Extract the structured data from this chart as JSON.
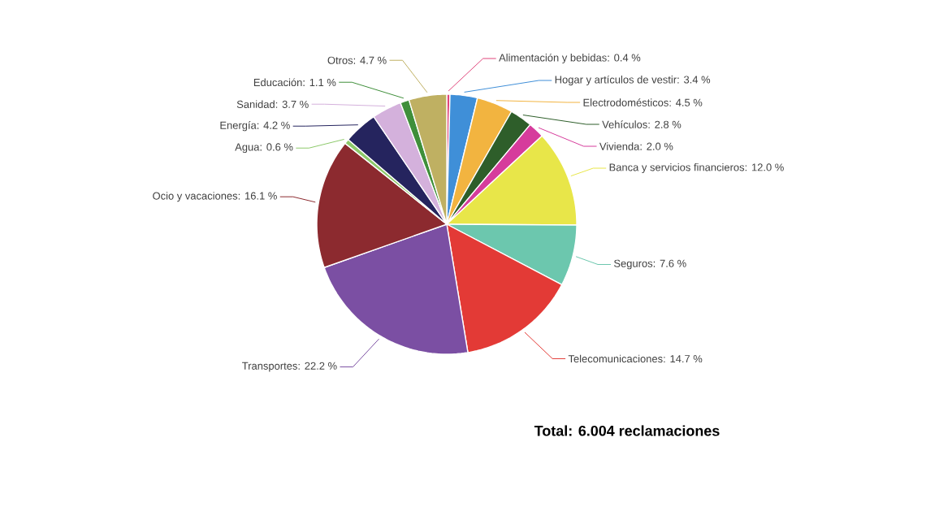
{
  "chart_data": {
    "type": "pie",
    "categories": [
      "Alimentación y bebidas",
      "Hogar y artículos de vestir",
      "Electrodomésticos",
      "Vehículos",
      "Vivienda",
      "Banca y servicios financieros",
      "Seguros",
      "Telecomunicaciones",
      "Transportes",
      "Ocio y vacaciones",
      "Agua",
      "Energía",
      "Sanidad",
      "Educación",
      "Otros"
    ],
    "values": [
      0.4,
      3.4,
      4.5,
      2.8,
      2.0,
      12.0,
      7.6,
      14.7,
      22.2,
      16.1,
      0.6,
      4.2,
      3.7,
      1.1,
      4.7
    ],
    "value_labels": [
      ": 0.4 %",
      ": 3.4 %",
      ": 4.5 %",
      ": 2.8 %",
      ": 2.0 %",
      ": 12.0 %",
      ": 7.6 %",
      ": 14.7 %",
      ": 22.2 %",
      ": 16.1 %",
      ": 0.6 %",
      ": 4.2 %",
      ": 3.7 %",
      ": 1.1 %",
      ": 4.7 %"
    ],
    "colors": [
      "#e0457b",
      "#3f8fd8",
      "#f2b440",
      "#2e5e2a",
      "#d63c9c",
      "#e8e649",
      "#6cc7ae",
      "#e33a36",
      "#7b4fa3",
      "#8c2a2f",
      "#8dc96a",
      "#25245e",
      "#d4b1dc",
      "#3f8f3a",
      "#bfb062"
    ],
    "annotations": [
      "Total: 6.004 reclamaciones"
    ]
  }
}
